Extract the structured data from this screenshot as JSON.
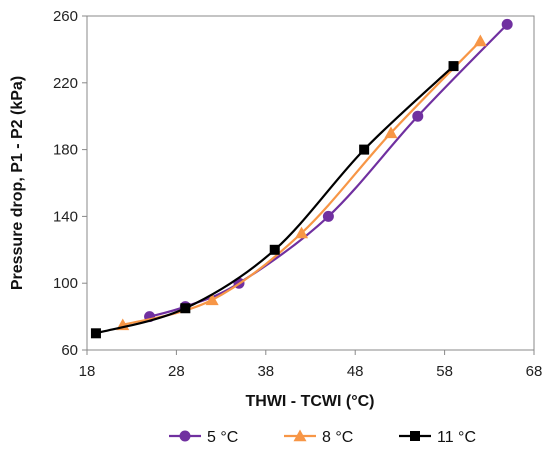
{
  "chart_data": {
    "type": "line",
    "xlabel": "THWI - TCWI (°C)",
    "ylabel": "Pressure drop, P1 - P2 (kPa)",
    "xlim": [
      18,
      68
    ],
    "ylim": [
      60,
      260
    ],
    "xticks": [
      18,
      28,
      38,
      48,
      58,
      68
    ],
    "yticks": [
      60,
      100,
      140,
      180,
      220,
      260
    ],
    "xtick_labels": [
      "18",
      "28",
      "38",
      "48",
      "58",
      "68"
    ],
    "ytick_labels": [
      "60",
      "100",
      "140",
      "180",
      "220",
      "260"
    ],
    "grid": false,
    "legend_position": "bottom",
    "series": [
      {
        "name": "5 °C",
        "color": "#7030A0",
        "marker": "circle",
        "x": [
          25,
          29,
          35,
          45,
          55,
          65
        ],
        "y": [
          80,
          86,
          100,
          140,
          200,
          255
        ]
      },
      {
        "name": "8 °C",
        "color": "#F79646",
        "marker": "triangle",
        "x": [
          22,
          32,
          42,
          52,
          62
        ],
        "y": [
          75,
          90,
          130,
          190,
          245
        ]
      },
      {
        "name": "11 °C",
        "color": "#000000",
        "marker": "square",
        "x": [
          19,
          29,
          39,
          49,
          59
        ],
        "y": [
          70,
          85,
          120,
          180,
          230
        ]
      }
    ]
  }
}
